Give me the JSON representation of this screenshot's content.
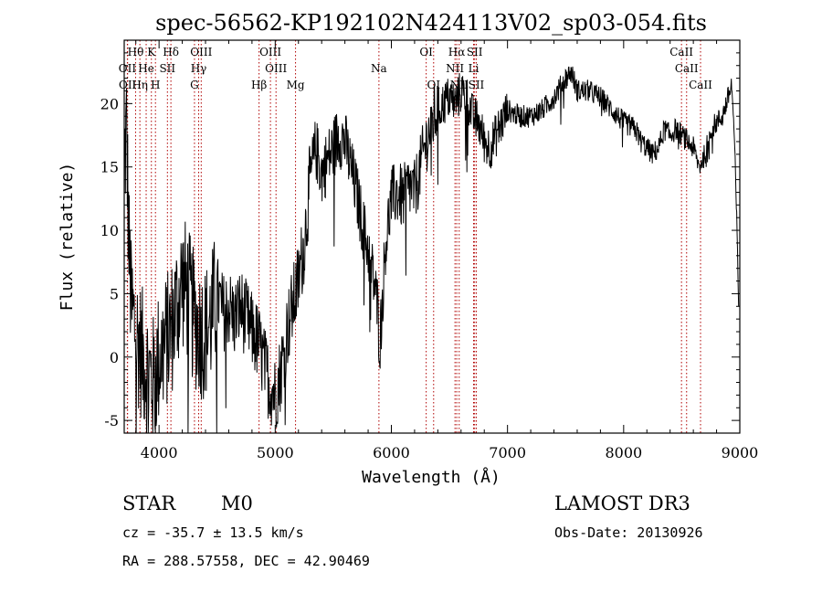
{
  "chart_data": {
    "type": "line",
    "title": "spec-56562-KP192102N424113V02_sp03-054.fits",
    "xlabel": "Wavelength (Å)",
    "ylabel": "Flux (relative)",
    "xlim": [
      3700,
      9000
    ],
    "ylim": [
      -6,
      25
    ],
    "xticks": [
      4000,
      5000,
      6000,
      7000,
      8000,
      9000
    ],
    "yticks": [
      -5,
      0,
      5,
      10,
      15,
      20
    ],
    "line_color": "#000000",
    "marker_color": "#b00000",
    "spectrum_anchors": [
      [
        3700,
        15.0
      ],
      [
        3720,
        18.0
      ],
      [
        3740,
        9.0
      ],
      [
        3760,
        4.0
      ],
      [
        3780,
        3.0
      ],
      [
        3800,
        2.0
      ],
      [
        3830,
        1.0
      ],
      [
        3860,
        0.0
      ],
      [
        3900,
        -1.0
      ],
      [
        3950,
        -2.0
      ],
      [
        4000,
        0.0
      ],
      [
        4050,
        1.0
      ],
      [
        4100,
        2.0
      ],
      [
        4150,
        4.0
      ],
      [
        4200,
        6.0
      ],
      [
        4250,
        5.0
      ],
      [
        4300,
        3.0
      ],
      [
        4350,
        2.0
      ],
      [
        4400,
        2.0
      ],
      [
        4450,
        3.0
      ],
      [
        4500,
        5.0
      ],
      [
        4550,
        3.5
      ],
      [
        4600,
        4.0
      ],
      [
        4650,
        3.0
      ],
      [
        4700,
        4.0
      ],
      [
        4750,
        3.0
      ],
      [
        4800,
        2.0
      ],
      [
        4860,
        1.0
      ],
      [
        4900,
        -0.5
      ],
      [
        4950,
        -2.0
      ],
      [
        5000,
        -3.0
      ],
      [
        5050,
        -1.0
      ],
      [
        5100,
        2.0
      ],
      [
        5150,
        4.0
      ],
      [
        5200,
        6.0
      ],
      [
        5250,
        9.0
      ],
      [
        5300,
        14.0
      ],
      [
        5350,
        16.5
      ],
      [
        5400,
        14.5
      ],
      [
        5450,
        15.5
      ],
      [
        5500,
        16.5
      ],
      [
        5550,
        17.5
      ],
      [
        5600,
        17.0
      ],
      [
        5650,
        15.0
      ],
      [
        5700,
        13.0
      ],
      [
        5750,
        10.5
      ],
      [
        5800,
        8.5
      ],
      [
        5850,
        6.0
      ],
      [
        5880,
        4.0
      ],
      [
        5900,
        1.0
      ],
      [
        5920,
        4.0
      ],
      [
        5950,
        9.0
      ],
      [
        6000,
        12.5
      ],
      [
        6050,
        13.0
      ],
      [
        6100,
        12.5
      ],
      [
        6150,
        13.5
      ],
      [
        6200,
        13.0
      ],
      [
        6250,
        15.0
      ],
      [
        6300,
        17.0
      ],
      [
        6350,
        18.5
      ],
      [
        6400,
        19.5
      ],
      [
        6450,
        20.0
      ],
      [
        6500,
        20.5
      ],
      [
        6550,
        20.0
      ],
      [
        6600,
        21.0
      ],
      [
        6650,
        20.5
      ],
      [
        6700,
        19.0
      ],
      [
        6750,
        18.5
      ],
      [
        6800,
        17.0
      ],
      [
        6850,
        16.5
      ],
      [
        6900,
        17.5
      ],
      [
        6950,
        18.5
      ],
      [
        7000,
        19.5
      ],
      [
        7100,
        19.0
      ],
      [
        7200,
        19.0
      ],
      [
        7300,
        19.5
      ],
      [
        7400,
        20.5
      ],
      [
        7500,
        22.0
      ],
      [
        7550,
        22.5
      ],
      [
        7600,
        21.0
      ],
      [
        7700,
        21.0
      ],
      [
        7800,
        20.5
      ],
      [
        7900,
        19.5
      ],
      [
        8000,
        18.5
      ],
      [
        8100,
        18.0
      ],
      [
        8150,
        17.0
      ],
      [
        8200,
        16.5
      ],
      [
        8250,
        16.0
      ],
      [
        8300,
        16.5
      ],
      [
        8350,
        18.0
      ],
      [
        8400,
        17.5
      ],
      [
        8450,
        18.0
      ],
      [
        8500,
        17.5
      ],
      [
        8550,
        17.0
      ],
      [
        8600,
        16.5
      ],
      [
        8650,
        15.0
      ],
      [
        8700,
        16.0
      ],
      [
        8750,
        18.0
      ],
      [
        8800,
        18.5
      ],
      [
        8850,
        19.0
      ],
      [
        8900,
        20.5
      ],
      [
        8930,
        21.5
      ],
      [
        8950,
        18.0
      ],
      [
        8970,
        12.0
      ],
      [
        8990,
        4.0
      ]
    ],
    "line_markers": [
      {
        "label": "Hθ",
        "wavelength": 3798,
        "row": 0
      },
      {
        "label": "OII",
        "wavelength": 3727,
        "row": 1
      },
      {
        "label": "OII",
        "wavelength": 3729,
        "row": 2
      },
      {
        "label": "K",
        "wavelength": 3934,
        "row": 0
      },
      {
        "label": "He",
        "wavelength": 3889,
        "row": 1
      },
      {
        "label": "Hη",
        "wavelength": 3835,
        "row": 2
      },
      {
        "label": "H",
        "wavelength": 3969,
        "row": 2
      },
      {
        "label": "Hδ",
        "wavelength": 4102,
        "row": 0
      },
      {
        "label": "SII",
        "wavelength": 4072,
        "row": 1
      },
      {
        "label": "OIII",
        "wavelength": 4363,
        "row": 0
      },
      {
        "label": "Hγ",
        "wavelength": 4341,
        "row": 1
      },
      {
        "label": "G",
        "wavelength": 4305,
        "row": 2
      },
      {
        "label": "Hβ",
        "wavelength": 4861,
        "row": 2
      },
      {
        "label": "OIII",
        "wavelength": 4959,
        "row": 0
      },
      {
        "label": "OIII",
        "wavelength": 5007,
        "row": 1
      },
      {
        "label": "Mg",
        "wavelength": 5175,
        "row": 2
      },
      {
        "label": "Na",
        "wavelength": 5893,
        "row": 1
      },
      {
        "label": "OI",
        "wavelength": 6300,
        "row": 0
      },
      {
        "label": "OI",
        "wavelength": 6364,
        "row": 2
      },
      {
        "label": "Hα",
        "wavelength": 6563,
        "row": 0
      },
      {
        "label": "SII",
        "wavelength": 6717,
        "row": 0
      },
      {
        "label": "NII",
        "wavelength": 6548,
        "row": 1
      },
      {
        "label": "Li",
        "wavelength": 6708,
        "row": 1
      },
      {
        "label": "NII",
        "wavelength": 6584,
        "row": 2
      },
      {
        "label": "SII",
        "wavelength": 6731,
        "row": 2
      },
      {
        "label": "CaII",
        "wavelength": 8498,
        "row": 0
      },
      {
        "label": "CaII",
        "wavelength": 8542,
        "row": 1
      },
      {
        "label": "CaII",
        "wavelength": 8662,
        "row": 2
      }
    ]
  },
  "info": {
    "class_label": "STAR",
    "subclass_label": "M0",
    "survey_label": "LAMOST DR3",
    "cz_text": "cz = -35.7 ± 13.5 km/s",
    "obs_date_text": "Obs-Date: 20130926",
    "radec_text": "RA = 288.57558, DEC =  42.90469"
  }
}
